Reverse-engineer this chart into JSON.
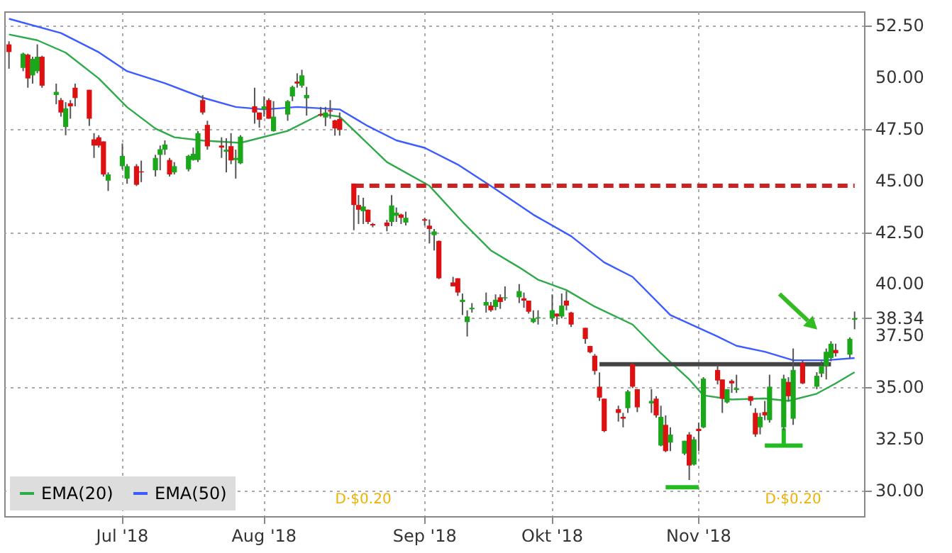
{
  "chart_data": {
    "type": "candlestick",
    "x": [
      "2018-06-08",
      "2018-06-11",
      "2018-06-12",
      "2018-06-13",
      "2018-06-14",
      "2018-06-15",
      "2018-06-18",
      "2018-06-19",
      "2018-06-20",
      "2018-06-21",
      "2018-06-22",
      "2018-06-25",
      "2018-06-26",
      "2018-06-27",
      "2018-06-28",
      "2018-06-29",
      "2018-07-02",
      "2018-07-03",
      "2018-07-05",
      "2018-07-06",
      "2018-07-09",
      "2018-07-10",
      "2018-07-11",
      "2018-07-12",
      "2018-07-13",
      "2018-07-16",
      "2018-07-17",
      "2018-07-18",
      "2018-07-19",
      "2018-07-20",
      "2018-07-23",
      "2018-07-24",
      "2018-07-25",
      "2018-07-26",
      "2018-07-27",
      "2018-07-30",
      "2018-07-31",
      "2018-08-01",
      "2018-08-02",
      "2018-08-03",
      "2018-08-06",
      "2018-08-07",
      "2018-08-08",
      "2018-08-09",
      "2018-08-10",
      "2018-08-13",
      "2018-08-14",
      "2018-08-15",
      "2018-08-16",
      "2018-08-17",
      "2018-08-20",
      "2018-08-21",
      "2018-08-22",
      "2018-08-23",
      "2018-08-24",
      "2018-08-27",
      "2018-08-28",
      "2018-08-29",
      "2018-08-30",
      "2018-08-31",
      "2018-09-04",
      "2018-09-05",
      "2018-09-06",
      "2018-09-07",
      "2018-09-10",
      "2018-09-11",
      "2018-09-12",
      "2018-09-13",
      "2018-09-14",
      "2018-09-17",
      "2018-09-18",
      "2018-09-19",
      "2018-09-20",
      "2018-09-21",
      "2018-09-24",
      "2018-09-25",
      "2018-09-26",
      "2018-09-27",
      "2018-09-28",
      "2018-10-01",
      "2018-10-02",
      "2018-10-03",
      "2018-10-04",
      "2018-10-05",
      "2018-10-08",
      "2018-10-09",
      "2018-10-10",
      "2018-10-11",
      "2018-10-12",
      "2018-10-15",
      "2018-10-16",
      "2018-10-17",
      "2018-10-18",
      "2018-10-19",
      "2018-10-22",
      "2018-10-23",
      "2018-10-24",
      "2018-10-25",
      "2018-10-26",
      "2018-10-29",
      "2018-10-30",
      "2018-10-31",
      "2018-11-01",
      "2018-11-02",
      "2018-11-05",
      "2018-11-06",
      "2018-11-07",
      "2018-11-08",
      "2018-11-09",
      "2018-11-12",
      "2018-11-13",
      "2018-11-14",
      "2018-11-15",
      "2018-11-16",
      "2018-11-19",
      "2018-11-20",
      "2018-11-21",
      "2018-11-23",
      "2018-11-26",
      "2018-11-27",
      "2018-11-28",
      "2018-11-29",
      "2018-11-30",
      "2018-12-03",
      "2018-12-04"
    ],
    "ohlc": [
      [
        51.6,
        51.75,
        50.42,
        51.23
      ],
      [
        50.46,
        51.2,
        50.3,
        51.15
      ],
      [
        51.1,
        51.15,
        49.5,
        49.95
      ],
      [
        50.1,
        51.0,
        49.7,
        50.9
      ],
      [
        50.3,
        51.6,
        50.2,
        51.0
      ],
      [
        51.0,
        51.05,
        49.5,
        49.6
      ],
      [
        49.15,
        49.7,
        48.7,
        49.3
      ],
      [
        48.9,
        49.0,
        48.1,
        48.3
      ],
      [
        47.6,
        48.8,
        47.2,
        48.5
      ],
      [
        48.75,
        48.9,
        48.0,
        48.6
      ],
      [
        49.5,
        49.7,
        48.6,
        49.0
      ],
      [
        49.4,
        49.4,
        47.65,
        48.0
      ],
      [
        47.0,
        47.3,
        46.1,
        46.7
      ],
      [
        47.1,
        47.2,
        46.6,
        46.7
      ],
      [
        46.9,
        46.9,
        45.2,
        45.3
      ],
      [
        45.0,
        45.4,
        44.5,
        45.3
      ],
      [
        45.7,
        46.8,
        45.55,
        46.2
      ],
      [
        45.1,
        45.8,
        44.85,
        45.7
      ],
      [
        45.7,
        45.8,
        44.74,
        44.8
      ],
      [
        45.45,
        45.97,
        44.93,
        45.4
      ],
      [
        45.5,
        46.25,
        45.2,
        46.1
      ],
      [
        46.25,
        46.7,
        45.5,
        46.52
      ],
      [
        46.5,
        46.95,
        46.25,
        46.75
      ],
      [
        46.0,
        46.1,
        45.2,
        45.3
      ],
      [
        45.4,
        45.9,
        45.3,
        45.7
      ],
      [
        45.55,
        46.25,
        45.45,
        46.2
      ],
      [
        46.0,
        46.6,
        45.97,
        46.3
      ],
      [
        46.0,
        47.4,
        45.9,
        47.3
      ],
      [
        48.9,
        49.14,
        48.2,
        48.3
      ],
      [
        47.7,
        47.9,
        46.5,
        46.66
      ],
      [
        46.7,
        47.1,
        46.1,
        46.6
      ],
      [
        46.4,
        47.05,
        45.4,
        46.5
      ],
      [
        46.67,
        47.3,
        45.8,
        45.98
      ],
      [
        46.0,
        46.5,
        45.1,
        46.1
      ],
      [
        45.84,
        47.2,
        45.8,
        47.13
      ],
      [
        48.6,
        49.5,
        47.76,
        48.3
      ],
      [
        48.3,
        48.3,
        47.57,
        47.95
      ],
      [
        48.45,
        49.08,
        48.1,
        48.6
      ],
      [
        48.9,
        48.99,
        48.0,
        48.0
      ],
      [
        47.4,
        48.85,
        47.37,
        48.1
      ],
      [
        48.2,
        48.9,
        47.9,
        48.85
      ],
      [
        49.08,
        49.6,
        48.85,
        49.54
      ],
      [
        49.8,
        50.2,
        49.5,
        49.7
      ],
      [
        49.6,
        50.37,
        49.5,
        50.1
      ],
      [
        48.99,
        49.54,
        48.15,
        49.15
      ],
      [
        48.22,
        48.57,
        48.1,
        48.15
      ],
      [
        48.06,
        48.57,
        47.64,
        48.3
      ],
      [
        48.41,
        48.9,
        48.0,
        48.35
      ],
      [
        47.92,
        47.95,
        47.18,
        47.53
      ],
      [
        47.99,
        48.3,
        47.18,
        47.46
      ],
      [
        44.86,
        44.86,
        42.6,
        43.82
      ],
      [
        43.82,
        44.3,
        42.9,
        43.59
      ],
      [
        43.52,
        44.17,
        42.9,
        43.75
      ],
      [
        43.59,
        43.6,
        42.9,
        43.0
      ],
      [
        42.9,
        42.95,
        42.74,
        42.83
      ],
      [
        42.97,
        43.1,
        42.55,
        42.8
      ],
      [
        43.0,
        44.3,
        42.8,
        43.8
      ],
      [
        43.3,
        43.7,
        43.0,
        43.45
      ],
      [
        43.36,
        43.4,
        42.9,
        43.2
      ],
      [
        42.97,
        43.5,
        42.83,
        43.2
      ],
      [
        43.13,
        43.2,
        42.83,
        43.06
      ],
      [
        42.82,
        43.12,
        41.96,
        42.66
      ],
      [
        42.36,
        42.66,
        41.62,
        42.54
      ],
      [
        42.08,
        42.1,
        40.23,
        40.27
      ],
      [
        40.07,
        40.34,
        39.88,
        39.88
      ],
      [
        40.27,
        40.27,
        39.42,
        39.58
      ],
      [
        39.12,
        39.53,
        38.49,
        39.23
      ],
      [
        38.15,
        38.72,
        37.45,
        38.42
      ],
      [
        38.77,
        39.07,
        38.61,
        38.84
      ],
      [
        38.95,
        39.58,
        38.61,
        39.12
      ],
      [
        38.95,
        39.12,
        38.65,
        38.72
      ],
      [
        38.88,
        39.49,
        38.72,
        39.23
      ],
      [
        39.35,
        39.49,
        38.79,
        39.12
      ],
      [
        39.3,
        39.88,
        39.19,
        39.35
      ],
      [
        39.35,
        39.99,
        39.07,
        39.65
      ],
      [
        39.3,
        39.58,
        38.84,
        39.19
      ],
      [
        39.19,
        39.19,
        38.56,
        38.65
      ],
      [
        38.15,
        38.72,
        38.1,
        38.33
      ],
      [
        38.33,
        38.72,
        38.03,
        38.38
      ],
      [
        38.33,
        39.49,
        38.19,
        38.72
      ],
      [
        38.56,
        38.56,
        38.03,
        38.42
      ],
      [
        38.42,
        39.53,
        38.33,
        38.95
      ],
      [
        39.19,
        39.65,
        38.72,
        38.95
      ],
      [
        38.61,
        38.65,
        37.91,
        38.03
      ],
      [
        37.87,
        37.87,
        37.1,
        37.33
      ],
      [
        36.99,
        37.0,
        36.64,
        36.69
      ],
      [
        36.52,
        36.6,
        35.6,
        35.78
      ],
      [
        35.02,
        35.71,
        34.33,
        34.49
      ],
      [
        34.44,
        34.44,
        32.82,
        32.87
      ],
      [
        33.93,
        34.1,
        33.33,
        33.75
      ],
      [
        33.56,
        33.75,
        33.05,
        33.47
      ],
      [
        33.98,
        34.86,
        33.75,
        34.79
      ],
      [
        36.11,
        36.18,
        34.95,
        35.02
      ],
      [
        34.9,
        34.9,
        33.79,
        34.02
      ],
      [
        34.21,
        34.9,
        33.75,
        34.33
      ],
      [
        34.44,
        34.56,
        33.52,
        33.63
      ],
      [
        32.17,
        34.1,
        32.13,
        33.56
      ],
      [
        33.17,
        33.63,
        31.85,
        31.9
      ],
      [
        32.31,
        33.05,
        31.9,
        32.7
      ],
      [
        31.78,
        32.4,
        31.71,
        32.4
      ],
      [
        32.7,
        32.82,
        30.5,
        31.2
      ],
      [
        31.25,
        32.59,
        31.2,
        32.47
      ],
      [
        32.98,
        33.28,
        31.9,
        32.87
      ],
      [
        33.05,
        35.48,
        33.01,
        35.41
      ],
      [
        35.83,
        36.06,
        35.13,
        35.32
      ],
      [
        35.37,
        35.37,
        33.75,
        34.44
      ],
      [
        34.26,
        34.9,
        34.21,
        34.9
      ],
      [
        35.3,
        35.37,
        34.72,
        35.18
      ],
      [
        34.86,
        35.6,
        34.72,
        34.95
      ],
      [
        34.56,
        34.56,
        34.1,
        34.33
      ],
      [
        33.75,
        33.98,
        32.59,
        32.71
      ],
      [
        33.05,
        33.75,
        32.71,
        33.56
      ],
      [
        33.79,
        34.33,
        33.4,
        33.63
      ],
      [
        33.4,
        35.6,
        33.28,
        35.02
      ],
      [
        33.05,
        35.6,
        32.9,
        35.41
      ],
      [
        35.25,
        35.48,
        34.33,
        34.56
      ],
      [
        33.47,
        36.87,
        33.17,
        35.83
      ],
      [
        36.18,
        36.3,
        35.14,
        35.18
      ],
      [
        35.02,
        35.72,
        34.9,
        35.55
      ],
      [
        35.65,
        36.25,
        35.48,
        36.02
      ],
      [
        36.02,
        36.87,
        35.37,
        36.71
      ],
      [
        36.41,
        37.22,
        36.25,
        37.1
      ],
      [
        36.8,
        37.1,
        36.48,
        36.64
      ],
      [
        36.57,
        37.41,
        36.41,
        37.34
      ],
      [
        38.26,
        38.66,
        37.8,
        38.34
      ]
    ],
    "series": [
      {
        "type": "line",
        "name": "EMA(20)",
        "color": "#2eaa4a",
        "x": [
          "2018-06-08",
          "2018-06-14",
          "2018-06-20",
          "2018-06-27",
          "2018-07-03",
          "2018-07-09",
          "2018-07-13",
          "2018-07-19",
          "2018-07-27",
          "2018-08-06",
          "2018-08-13",
          "2018-08-17",
          "2018-08-27",
          "2018-09-05",
          "2018-09-12",
          "2018-09-18",
          "2018-09-24",
          "2018-09-28",
          "2018-10-04",
          "2018-10-10",
          "2018-10-18",
          "2018-10-24",
          "2018-10-30",
          "2018-11-02",
          "2018-11-08",
          "2018-11-15",
          "2018-11-20",
          "2018-11-26",
          "2018-11-30",
          "2018-12-04"
        ],
        "values": [
          52.08,
          51.8,
          51.2,
          49.95,
          48.56,
          47.52,
          47.1,
          46.94,
          46.83,
          47.41,
          48.22,
          48.1,
          45.9,
          44.75,
          43.0,
          41.62,
          40.8,
          40.2,
          39.7,
          38.9,
          38.03,
          36.64,
          35.37,
          34.6,
          34.4,
          34.45,
          34.33,
          34.68,
          35.18,
          35.72
        ]
      },
      {
        "type": "line",
        "name": "EMA(50)",
        "color": "#3d5cff",
        "x": [
          "2018-06-08",
          "2018-06-19",
          "2018-06-27",
          "2018-07-03",
          "2018-07-11",
          "2018-07-19",
          "2018-07-26",
          "2018-08-01",
          "2018-08-08",
          "2018-08-17",
          "2018-08-23",
          "2018-08-29",
          "2018-09-04",
          "2018-09-11",
          "2018-09-18",
          "2018-09-27",
          "2018-10-05",
          "2018-10-12",
          "2018-10-18",
          "2018-10-26",
          "2018-11-05",
          "2018-11-09",
          "2018-11-15",
          "2018-11-21",
          "2018-11-28",
          "2018-12-04"
        ],
        "values": [
          52.84,
          52.15,
          51.22,
          50.3,
          49.72,
          49.02,
          48.57,
          48.45,
          48.57,
          48.45,
          47.64,
          46.95,
          46.59,
          45.78,
          44.74,
          43.35,
          42.31,
          41.04,
          40.34,
          38.49,
          37.45,
          37.0,
          36.71,
          36.3,
          36.3,
          36.41
        ]
      },
      {
        "type": "line",
        "color": "#cc2222",
        "line_style": "dashed",
        "x": [
          "2018-08-20",
          "2018-12-04"
        ],
        "values": [
          44.75,
          44.75
        ]
      },
      {
        "type": "line",
        "color": "#444444",
        "x": [
          "2018-10-11",
          "2018-11-29"
        ],
        "values": [
          36.11,
          36.11
        ]
      },
      {
        "type": "line",
        "color": "#22bb22",
        "x": [
          "2018-10-25",
          "2018-11-01"
        ],
        "values": [
          30.15,
          30.15
        ]
      },
      {
        "type": "line",
        "color": "#22bb22",
        "x": [
          "2018-11-15",
          "2018-11-23"
        ],
        "values": [
          32.17,
          32.17
        ]
      },
      {
        "type": "line",
        "color": "#22bb22",
        "x": [
          "2018-11-19",
          "2018-11-19"
        ],
        "values": [
          33.0,
          32.17
        ]
      }
    ],
    "xlim": [
      "2018-06-07",
      "2018-12-06"
    ],
    "xticks": [
      {
        "value": "2018-07-02",
        "label": "Jul '18"
      },
      {
        "value": "2018-08-01",
        "label": "Aug '18"
      },
      {
        "value": "2018-09-04",
        "label": "Sep '18"
      },
      {
        "value": "2018-10-01",
        "label": "Okt '18"
      },
      {
        "value": "2018-11-01",
        "label": "Nov '18"
      }
    ],
    "ylim": [
      28.75,
      53.2
    ],
    "yticks": [
      {
        "value": 30,
        "label": "30.00"
      },
      {
        "value": 32.5,
        "label": "32.50"
      },
      {
        "value": 35,
        "label": "35.00"
      },
      {
        "value": 37.5,
        "label": "37.50"
      },
      {
        "value": 38.34,
        "label": "38.34"
      },
      {
        "value": 40,
        "label": "40.00"
      },
      {
        "value": 42.5,
        "label": "42.50"
      },
      {
        "value": 45,
        "label": "45.00"
      },
      {
        "value": 47.5,
        "label": "47.50"
      },
      {
        "value": 50,
        "label": "50.00"
      },
      {
        "value": 52.5,
        "label": "52.50"
      }
    ],
    "grid": true,
    "legend": "bottom left",
    "annotations": [
      "D·$0.20",
      "D·$0.20"
    ]
  }
}
